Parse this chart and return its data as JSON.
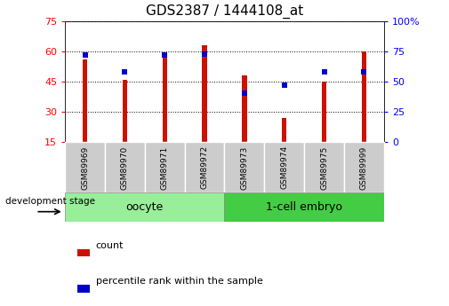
{
  "title": "GDS2387 / 1444108_at",
  "samples": [
    "GSM89969",
    "GSM89970",
    "GSM89971",
    "GSM89972",
    "GSM89973",
    "GSM89974",
    "GSM89975",
    "GSM89999"
  ],
  "counts": [
    56,
    46,
    59,
    63,
    48,
    27,
    45,
    60
  ],
  "percentiles": [
    72,
    58,
    72,
    73,
    41,
    47,
    58,
    58
  ],
  "left_ylim": [
    15,
    75
  ],
  "right_ylim": [
    0,
    100
  ],
  "left_yticks": [
    15,
    30,
    45,
    60,
    75
  ],
  "right_yticks": [
    0,
    25,
    50,
    75,
    100
  ],
  "right_yticklabels": [
    "0",
    "25",
    "50",
    "75",
    "100%"
  ],
  "bar_color": "#cc1100",
  "dot_color": "#0000cc",
  "tick_label_bg": "#cccccc",
  "oocyte_color": "#99ee99",
  "embryo_color": "#44cc44",
  "oocyte_label": "oocyte",
  "embryo_label": "1-cell embryo",
  "stage_label": "development stage",
  "legend_count": "count",
  "legend_percentile": "percentile rank within the sample",
  "bar_width": 0.12,
  "title_fontsize": 11,
  "tick_fontsize": 8,
  "label_fontsize": 8.5,
  "sample_fontsize": 6.5,
  "group_fontsize": 9
}
